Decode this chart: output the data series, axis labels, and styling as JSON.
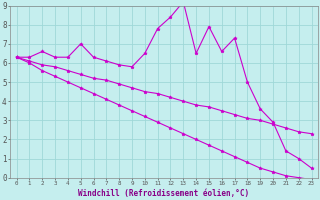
{
  "xlabel": "Windchill (Refroidissement éolien,°C)",
  "background_color": "#c5eeee",
  "grid_color": "#9fd8d8",
  "line_color": "#cc00cc",
  "x_data": [
    0,
    1,
    2,
    3,
    4,
    5,
    6,
    7,
    8,
    9,
    10,
    11,
    12,
    13,
    14,
    15,
    16,
    17,
    18,
    19,
    20,
    21,
    22,
    23
  ],
  "series1": [
    6.3,
    6.3,
    6.6,
    6.3,
    6.3,
    7.0,
    6.3,
    6.1,
    5.9,
    5.8,
    6.5,
    7.8,
    8.4,
    9.2,
    6.5,
    7.9,
    6.6,
    7.3,
    5.0,
    3.6,
    2.9,
    1.4,
    1.0,
    0.5
  ],
  "series2": [
    6.3,
    6.1,
    5.9,
    5.8,
    5.6,
    5.4,
    5.2,
    5.1,
    4.9,
    4.7,
    4.5,
    4.4,
    4.2,
    4.0,
    3.8,
    3.7,
    3.5,
    3.3,
    3.1,
    3.0,
    2.8,
    2.6,
    2.4,
    2.3
  ],
  "series3": [
    6.3,
    6.0,
    5.6,
    5.3,
    5.0,
    4.7,
    4.4,
    4.1,
    3.8,
    3.5,
    3.2,
    2.9,
    2.6,
    2.3,
    2.0,
    1.7,
    1.4,
    1.1,
    0.8,
    0.5,
    0.3,
    0.1,
    0.0,
    -0.1
  ],
  "ylim": [
    0,
    9
  ],
  "xlim": [
    -0.5,
    23.5
  ],
  "yticks": [
    0,
    1,
    2,
    3,
    4,
    5,
    6,
    7,
    8,
    9
  ],
  "xticks": [
    0,
    1,
    2,
    3,
    4,
    5,
    6,
    7,
    8,
    9,
    10,
    11,
    12,
    13,
    14,
    15,
    16,
    17,
    18,
    19,
    20,
    21,
    22,
    23
  ]
}
